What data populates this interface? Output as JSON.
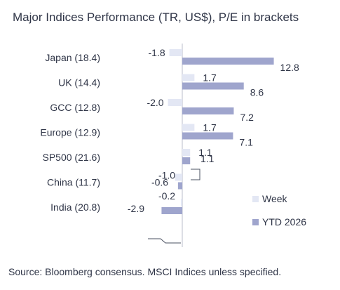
{
  "colors": {
    "week": "#e3e7f4",
    "ytd": "#9fa5cd",
    "text": "#2f3547",
    "axis": "#b8bccb"
  },
  "chart_data": {
    "type": "bar",
    "orientation": "horizontal",
    "title": "Major Indices Performance (TR, US$), P/E in brackets",
    "categories": [
      "Japan (18.4)",
      "UK (14.4)",
      "GCC (12.8)",
      "Europe (12.9)",
      "SP500 (21.6)",
      "China (11.7)",
      "India (20.8)"
    ],
    "series": [
      {
        "name": "Week",
        "values": [
          -1.8,
          1.7,
          -2.0,
          1.7,
          1.1,
          -1.0,
          -0.2
        ],
        "labels": [
          "-1.8",
          "1.7",
          "-2.0",
          "1.7",
          "1.1",
          "-1.0",
          "-0.2"
        ],
        "color": "#e3e7f4"
      },
      {
        "name": "YTD 2026",
        "values": [
          12.8,
          8.6,
          7.2,
          7.1,
          1.1,
          -0.6,
          -2.9
        ],
        "labels": [
          "12.8",
          "8.6",
          "7.2",
          "7.1",
          "1.1",
          "-0.6",
          "-2.9"
        ],
        "color": "#9fa5cd"
      }
    ],
    "legend": "bottom-right",
    "grid": false,
    "source": "Source: Bloomberg consensus. MSCI Indices unless specified."
  }
}
